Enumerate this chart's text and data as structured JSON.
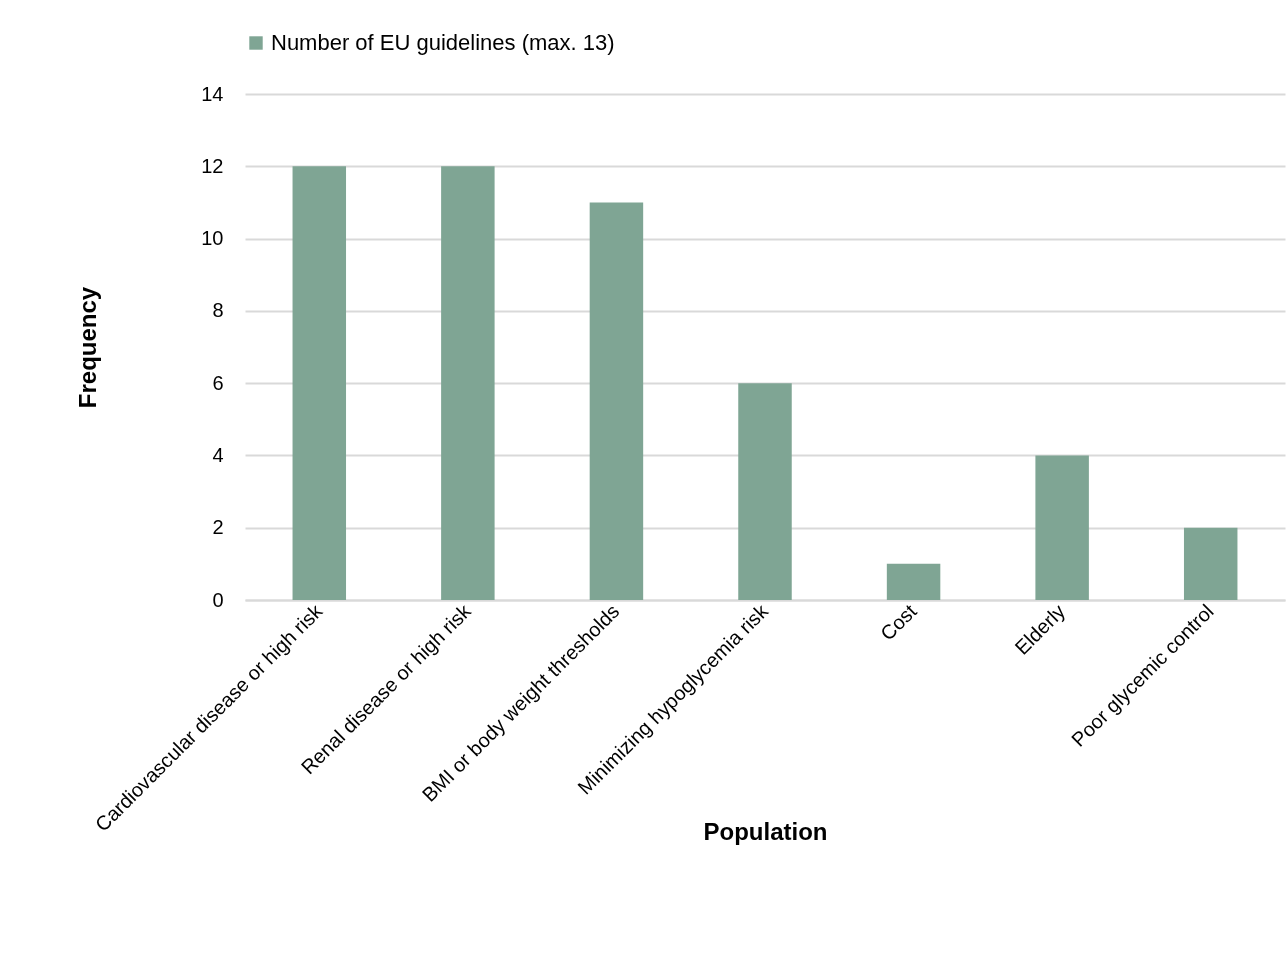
{
  "chart_data": {
    "type": "bar",
    "xlabel": "Population",
    "ylabel": "Frequency",
    "categories": [
      "Cardiovascular disease or high risk",
      "Renal disease or high risk",
      "BMI or body weight thresholds",
      "Minimizing hypoglycemia risk",
      "Cost",
      "Elderly",
      "Poor glycemic control"
    ],
    "series": [
      {
        "name": "Number of EU guidelines (max. 13)",
        "color": "#7fa594",
        "values": [
          12,
          12,
          11,
          6,
          1,
          4,
          2
        ]
      }
    ],
    "ylim": [
      0,
      14
    ],
    "yticks": [
      0,
      2,
      4,
      6,
      8,
      10,
      12,
      14
    ],
    "grid": "y",
    "legend": "top"
  }
}
